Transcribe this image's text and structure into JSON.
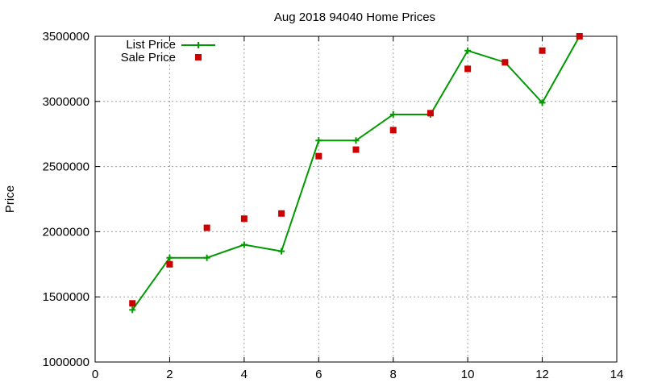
{
  "chart_data": {
    "type": "line",
    "title": "Aug 2018 94040 Home Prices",
    "xlabel": "",
    "ylabel": "Price",
    "xlim": [
      0,
      14
    ],
    "ylim": [
      1000000,
      3500000
    ],
    "xticks": [
      0,
      2,
      4,
      6,
      8,
      10,
      12,
      14
    ],
    "yticks": [
      1000000,
      1500000,
      2000000,
      2500000,
      3000000,
      3500000
    ],
    "xtick_labels": [
      "0",
      "2",
      "4",
      "6",
      "8",
      "10",
      "12",
      "14"
    ],
    "ytick_labels": [
      "1000000",
      "1500000",
      "2000000",
      "2500000",
      "3000000",
      "3500000"
    ],
    "grid": true,
    "legend_position": "top-left",
    "series": [
      {
        "name": "List Price",
        "style": "line-with-plus-markers",
        "color": "#009900",
        "x": [
          1,
          2,
          3,
          4,
          5,
          6,
          7,
          8,
          9,
          10,
          11,
          12,
          13
        ],
        "y": [
          1400000,
          1800000,
          1800000,
          1900000,
          1850000,
          2700000,
          2700000,
          2900000,
          2900000,
          3390000,
          3300000,
          2990000,
          3500000
        ]
      },
      {
        "name": "Sale Price",
        "style": "square-points",
        "color": "#cc0000",
        "x": [
          1,
          2,
          3,
          4,
          5,
          6,
          7,
          8,
          9,
          10,
          11,
          12,
          13
        ],
        "y": [
          1450000,
          1750000,
          2030000,
          2100000,
          2140000,
          2580000,
          2630000,
          2780000,
          2910000,
          3250000,
          3300000,
          3390000,
          3500000
        ]
      }
    ]
  }
}
